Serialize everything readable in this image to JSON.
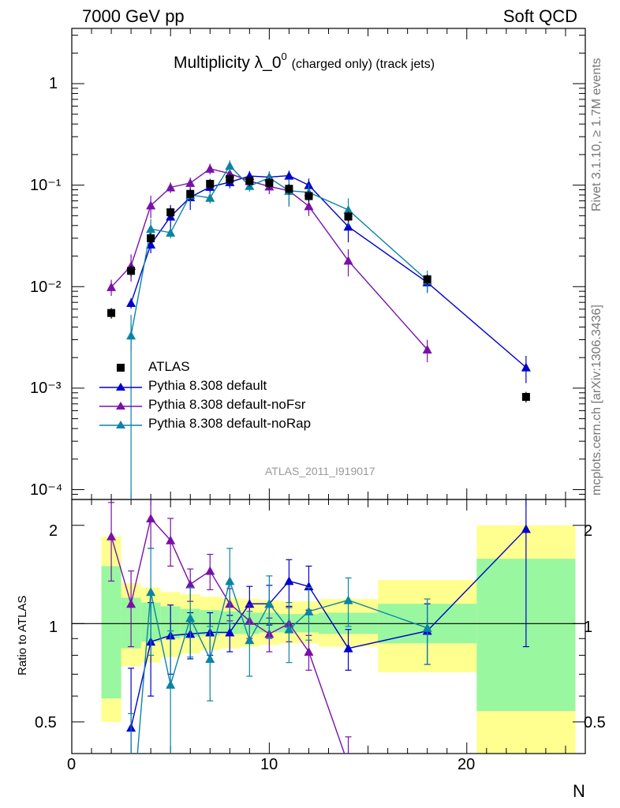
{
  "header": {
    "energy": "7000 GeV pp",
    "process": "Soft QCD"
  },
  "title": {
    "main": "Multiplicity λ_0",
    "sup": "0",
    "suffix": "(charged only) (track jets)"
  },
  "side_text": {
    "rivet": "Rivet 3.1.10, ≥ 1.7M events",
    "mcplots": "mcplots.cern.ch [arXiv:1306.3436]"
  },
  "analysis_label": "ATLAS_2011_I919017",
  "ratio_ylabel": "Ratio to ATLAS",
  "xlabel": "N",
  "legend": [
    {
      "label": "ATLAS",
      "marker": "square",
      "color": "#000000"
    },
    {
      "label": "Pythia 8.308 default",
      "marker": "triangle",
      "color": "#0000cc"
    },
    {
      "label": "Pythia 8.308 default-noFsr",
      "marker": "triangle",
      "color": "#7a10a8"
    },
    {
      "label": "Pythia 8.308 default-noRap",
      "marker": "triangle",
      "color": "#0b84a5"
    }
  ],
  "axis_labels": {
    "main_y": [
      "1",
      "10⁻¹",
      "10⁻²",
      "10⁻³",
      "10⁻⁴"
    ],
    "ratio_y": [
      "2",
      "1",
      "0.5"
    ],
    "x": [
      "0",
      "10",
      "20"
    ]
  },
  "chart_data": {
    "type": "scatter",
    "x_range": [
      0,
      26
    ],
    "main": {
      "yscale": "log",
      "ylim": [
        8e-05,
        3.5
      ],
      "data": {
        "name": "ATLAS",
        "color": "#000000",
        "x": [
          2,
          3,
          4,
          5,
          6,
          7,
          8,
          9,
          10,
          11,
          12,
          14,
          18,
          23
        ],
        "y": [
          0.0055,
          0.0143,
          0.03,
          0.054,
          0.082,
          0.103,
          0.115,
          0.11,
          0.105,
          0.092,
          0.078,
          0.049,
          0.0118,
          0.00082
        ]
      },
      "series": [
        {
          "name": "Pythia 8.308 default",
          "color": "#0000cc",
          "x": [
            3,
            4,
            5,
            6,
            7,
            8,
            9,
            10,
            11,
            12,
            14,
            18,
            23
          ],
          "y": [
            0.0069,
            0.026,
            0.049,
            0.076,
            0.096,
            0.107,
            0.123,
            0.12,
            0.124,
            0.1,
            0.039,
            0.011,
            0.0016
          ]
        },
        {
          "name": "Pythia 8.308 default-noFsr",
          "color": "#7a10a8",
          "x": [
            2,
            3,
            4,
            5,
            6,
            7,
            8,
            9,
            10,
            11,
            12,
            14,
            18
          ],
          "y": [
            0.0099,
            0.016,
            0.063,
            0.095,
            0.105,
            0.145,
            0.13,
            0.11,
            0.097,
            0.088,
            0.062,
            0.018,
            0.0024
          ]
        },
        {
          "name": "Pythia 8.308 default-noRap",
          "color": "#0b84a5",
          "x": [
            3,
            4,
            5,
            6,
            7,
            8,
            9,
            10,
            11,
            12,
            14,
            18
          ],
          "y": [
            0.0033,
            0.037,
            0.034,
            0.08,
            0.075,
            0.155,
            0.098,
            0.118,
            0.088,
            0.085,
            0.057,
            0.0115
          ]
        }
      ]
    },
    "ratio": {
      "yscale": "log",
      "ylim": [
        0.4,
        2.4
      ],
      "bands": [
        {
          "x0": 1.5,
          "x1": 2.5,
          "outer": [
            0.5,
            1.85
          ],
          "inner": [
            0.59,
            1.5
          ]
        },
        {
          "x0": 2.5,
          "x1": 3.5,
          "outer": [
            0.74,
            1.33
          ],
          "inner": [
            0.84,
            1.2
          ]
        },
        {
          "x0": 3.5,
          "x1": 4.5,
          "outer": [
            0.76,
            1.29
          ],
          "inner": [
            0.88,
            1.16
          ]
        },
        {
          "x0": 4.5,
          "x1": 5.5,
          "outer": [
            0.79,
            1.25
          ],
          "inner": [
            0.9,
            1.13
          ]
        },
        {
          "x0": 5.5,
          "x1": 6.5,
          "outer": [
            0.81,
            1.23
          ],
          "inner": [
            0.91,
            1.11
          ]
        },
        {
          "x0": 6.5,
          "x1": 7.5,
          "outer": [
            0.83,
            1.21
          ],
          "inner": [
            0.92,
            1.1
          ]
        },
        {
          "x0": 7.5,
          "x1": 8.5,
          "outer": [
            0.84,
            1.2
          ],
          "inner": [
            0.93,
            1.09
          ]
        },
        {
          "x0": 8.5,
          "x1": 9.5,
          "outer": [
            0.85,
            1.19
          ],
          "inner": [
            0.93,
            1.08
          ]
        },
        {
          "x0": 9.5,
          "x1": 10.5,
          "outer": [
            0.86,
            1.18
          ],
          "inner": [
            0.94,
            1.08
          ]
        },
        {
          "x0": 10.5,
          "x1": 11.5,
          "outer": [
            0.87,
            1.17
          ],
          "inner": [
            0.94,
            1.07
          ]
        },
        {
          "x0": 11.5,
          "x1": 12.5,
          "outer": [
            0.87,
            1.17
          ],
          "inner": [
            0.94,
            1.07
          ]
        },
        {
          "x0": 12.5,
          "x1": 15.5,
          "outer": [
            0.85,
            1.19
          ],
          "inner": [
            0.93,
            1.08
          ]
        },
        {
          "x0": 15.5,
          "x1": 20.5,
          "outer": [
            0.71,
            1.36
          ],
          "inner": [
            0.87,
            1.15
          ]
        },
        {
          "x0": 20.5,
          "x1": 25.5,
          "outer": [
            0.4,
            2.0
          ],
          "inner": [
            0.54,
            1.58
          ]
        }
      ],
      "series": [
        {
          "name": "Pythia 8.308 default",
          "color": "#0000cc",
          "x": [
            3,
            4,
            5,
            6,
            7,
            8,
            9,
            10,
            11,
            12,
            14,
            18,
            23
          ],
          "y": [
            0.48,
            0.88,
            0.92,
            0.93,
            0.94,
            0.94,
            1.15,
            1.15,
            1.35,
            1.3,
            0.84,
            0.95,
            1.95
          ],
          "err": [
            0.25,
            0.28,
            0.22,
            0.15,
            0.14,
            0.12,
            0.15,
            0.16,
            0.22,
            0.2,
            0.12,
            0.2,
            1.1
          ]
        },
        {
          "name": "Pythia 8.308 default-noFsr",
          "color": "#7a10a8",
          "x": [
            2,
            3,
            4,
            5,
            6,
            7,
            8,
            9,
            10,
            11,
            12,
            14
          ],
          "y": [
            1.85,
            1.15,
            2.1,
            1.8,
            1.32,
            1.45,
            1.15,
            1.02,
            0.93,
            1.0,
            0.82,
            0.37
          ],
          "err": [
            0.5,
            0.3,
            0.4,
            0.3,
            0.15,
            0.18,
            0.13,
            0.12,
            0.11,
            0.12,
            0.1,
            0.08
          ]
        },
        {
          "name": "Pythia 8.308 default-noRap",
          "color": "#0b84a5",
          "x": [
            3,
            4,
            5,
            6,
            7,
            8,
            9,
            10,
            11,
            12,
            14,
            18
          ],
          "y": [
            0.23,
            1.25,
            0.65,
            1.04,
            0.78,
            1.35,
            0.89,
            1.15,
            0.96,
            1.09,
            1.18,
            0.97
          ],
          "err": [
            0.3,
            0.45,
            0.3,
            0.25,
            0.2,
            0.35,
            0.2,
            0.25,
            0.2,
            0.2,
            0.2,
            0.22
          ]
        }
      ]
    }
  }
}
